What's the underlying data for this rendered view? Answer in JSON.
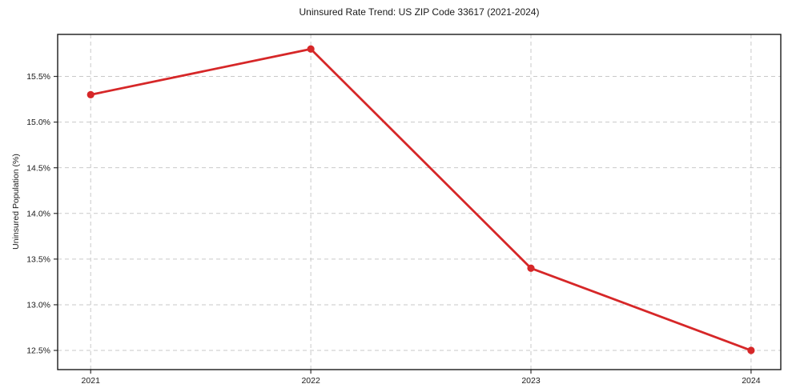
{
  "chart_data": {
    "type": "line",
    "title": "Uninsured Rate Trend: US ZIP Code 33617 (2021-2024)",
    "xlabel": "",
    "ylabel": "Uninsured Population (%)",
    "x": [
      2021,
      2022,
      2023,
      2024
    ],
    "values": [
      15.3,
      15.8,
      13.4,
      12.5
    ],
    "x_tick_labels": [
      "2021",
      "2022",
      "2023",
      "2024"
    ],
    "y_ticks": [
      12.5,
      13.0,
      13.5,
      14.0,
      14.5,
      15.0,
      15.5
    ],
    "y_tick_labels": [
      "12.5%",
      "13.0%",
      "13.5%",
      "14.0%",
      "14.5%",
      "15.0%",
      "15.5%"
    ],
    "xlim": [
      2020.85,
      2024.135
    ],
    "ylim": [
      12.29,
      15.96
    ],
    "grid": true,
    "legend_position": "none",
    "colors": {
      "line": "#d62728",
      "marker": "#d62728",
      "grid": "#c9c9c9",
      "axis_border": "#1a1a1a",
      "tick": "#333333"
    }
  }
}
